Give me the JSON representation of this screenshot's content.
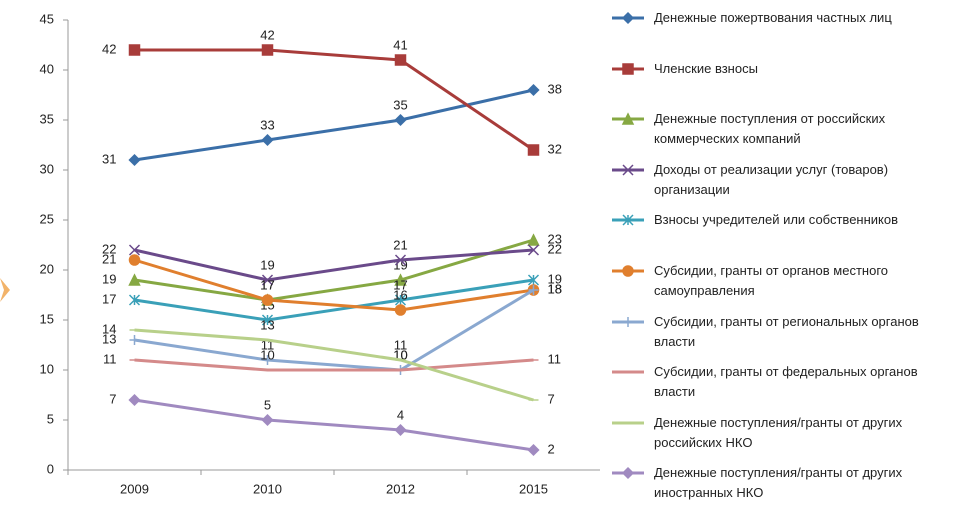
{
  "chart_data": {
    "type": "line",
    "categories": [
      "2009",
      "2010",
      "2012",
      "2015"
    ],
    "ylim": [
      0,
      45
    ],
    "yticks": [
      0,
      5,
      10,
      15,
      20,
      25,
      30,
      35,
      40,
      45
    ],
    "series": [
      {
        "name": "Денежные пожертвования частных лиц",
        "color": "#3b6fa8",
        "values": [
          31,
          33,
          35,
          38
        ]
      },
      {
        "name": "Членские взносы",
        "color": "#a83c3a",
        "values": [
          42,
          42,
          41,
          32
        ]
      },
      {
        "name": "Денежные поступления от российских коммерческих компаний",
        "color": "#86a843",
        "values": [
          19,
          17,
          19,
          23
        ]
      },
      {
        "name": "Доходы от реализации услуг (товаров) организации",
        "color": "#6a4a8a",
        "values": [
          22,
          19,
          21,
          22
        ]
      },
      {
        "name": "Взносы учредителей или собственников",
        "color": "#3aa0b8",
        "values": [
          17,
          15,
          17,
          19
        ]
      },
      {
        "name": "Субсидии, гранты от органов местного самоуправления",
        "color": "#e07f2e",
        "values": [
          21,
          17,
          16,
          18
        ]
      },
      {
        "name": "Субсидии, гранты от региональных органов власти",
        "color": "#8aa8d0",
        "values": [
          13,
          11,
          10,
          18
        ]
      },
      {
        "name": "Субсидии, гранты от федеральных органов власти",
        "color": "#d48a8a",
        "values": [
          11,
          10,
          10,
          11
        ]
      },
      {
        "name": "Денежные поступления/гранты от других российских НКО",
        "color": "#b8d08a",
        "values": [
          14,
          13,
          11,
          7
        ]
      },
      {
        "name": "Денежные поступления/гранты от других иностранных НКО",
        "color": "#a08ac0",
        "values": [
          7,
          5,
          4,
          2
        ]
      }
    ]
  }
}
